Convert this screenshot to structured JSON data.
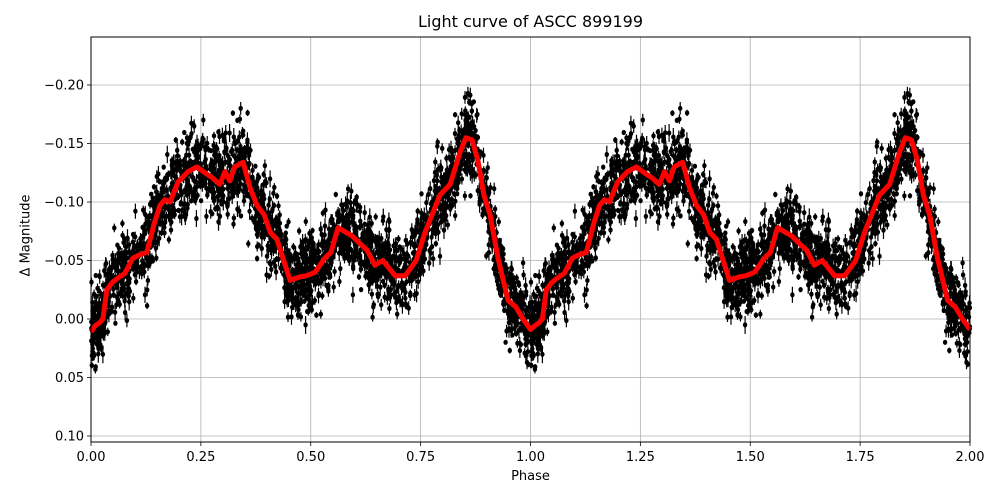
{
  "chart_data": {
    "type": "scatter",
    "title": "Light curve of ASCC 899199",
    "xlabel": "Phase",
    "ylabel": "Δ Magnitude",
    "xlim": [
      0.0,
      2.0
    ],
    "ylim": [
      0.105,
      -0.242
    ],
    "y_inverted": true,
    "grid": true,
    "legend": null,
    "xticks": [
      "0.00",
      "0.25",
      "0.50",
      "0.75",
      "1.00",
      "1.25",
      "1.50",
      "1.75",
      "2.00"
    ],
    "xtick_values": [
      0.0,
      0.25,
      0.5,
      0.75,
      1.0,
      1.25,
      1.5,
      1.75,
      2.0
    ],
    "yticks": [
      "−0.20",
      "−0.15",
      "−0.10",
      "−0.05",
      "0.00",
      "0.05",
      "0.10"
    ],
    "ytick_values": [
      -0.2,
      -0.15,
      -0.1,
      -0.05,
      0.0,
      0.05,
      0.1
    ],
    "series": [
      {
        "name": "observations",
        "kind": "errorbar-scatter",
        "color": "#000000",
        "description": "Dense black points with vertical error bars, phase-folded and repeated over two cycles; spread roughly ±0.05–0.1 mag around the binned curve"
      },
      {
        "name": "binned curve",
        "kind": "line",
        "color": "#ff0000",
        "linewidth": 5,
        "phase": [
          0.0,
          0.009,
          0.02,
          0.027,
          0.036,
          0.048,
          0.061,
          0.077,
          0.095,
          0.111,
          0.127,
          0.145,
          0.157,
          0.168,
          0.18,
          0.198,
          0.221,
          0.241,
          0.259,
          0.275,
          0.293,
          0.305,
          0.316,
          0.327,
          0.346,
          0.362,
          0.378,
          0.394,
          0.408,
          0.423,
          0.453,
          0.475,
          0.491,
          0.51,
          0.532,
          0.546,
          0.562,
          0.594,
          0.616,
          0.628,
          0.646,
          0.664,
          0.692,
          0.715,
          0.74,
          0.76,
          0.794,
          0.817,
          0.84,
          0.853,
          0.867,
          0.88,
          0.894,
          0.908,
          0.926,
          0.949,
          0.967,
          0.983,
          1.0
        ],
        "delta_mag": [
          0.011,
          0.006,
          0.003,
          0.0,
          -0.025,
          -0.031,
          -0.035,
          -0.039,
          -0.052,
          -0.055,
          -0.057,
          -0.083,
          -0.097,
          -0.102,
          -0.1,
          -0.117,
          -0.126,
          -0.13,
          -0.125,
          -0.121,
          -0.115,
          -0.126,
          -0.118,
          -0.13,
          -0.134,
          -0.112,
          -0.097,
          -0.089,
          -0.074,
          -0.068,
          -0.033,
          -0.036,
          -0.037,
          -0.04,
          -0.052,
          -0.057,
          -0.078,
          -0.071,
          -0.063,
          -0.059,
          -0.046,
          -0.05,
          -0.037,
          -0.037,
          -0.05,
          -0.074,
          -0.106,
          -0.115,
          -0.143,
          -0.155,
          -0.153,
          -0.136,
          -0.106,
          -0.089,
          -0.052,
          -0.016,
          -0.01,
          0.0,
          0.009
        ]
      }
    ]
  }
}
